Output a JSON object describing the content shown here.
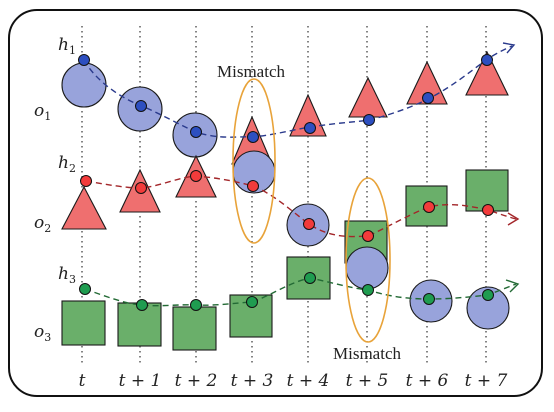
{
  "tracks": [
    {
      "h_main": "h",
      "h_sub": "1",
      "o_main": "o",
      "o_sub": "1"
    },
    {
      "h_main": "h",
      "h_sub": "2",
      "o_main": "o",
      "o_sub": "2"
    },
    {
      "h_main": "h",
      "h_sub": "3",
      "o_main": "o",
      "o_sub": "3"
    }
  ],
  "time_labels": [
    "t",
    "t + 1",
    "t + 2",
    "t + 3",
    "t + 4",
    "t + 5",
    "t + 6",
    "t + 7"
  ],
  "mismatch_labels": [
    "Mismatch",
    "Mismatch"
  ],
  "colors": {
    "circle_fill": "#98a3db",
    "triangle_fill": "#ef6f6f",
    "square_fill": "#6aaf6a",
    "track1_line": "#2a3a8c",
    "track2_line": "#a3262a",
    "track3_line": "#236a35",
    "ellipse": "#e8a33a"
  }
}
